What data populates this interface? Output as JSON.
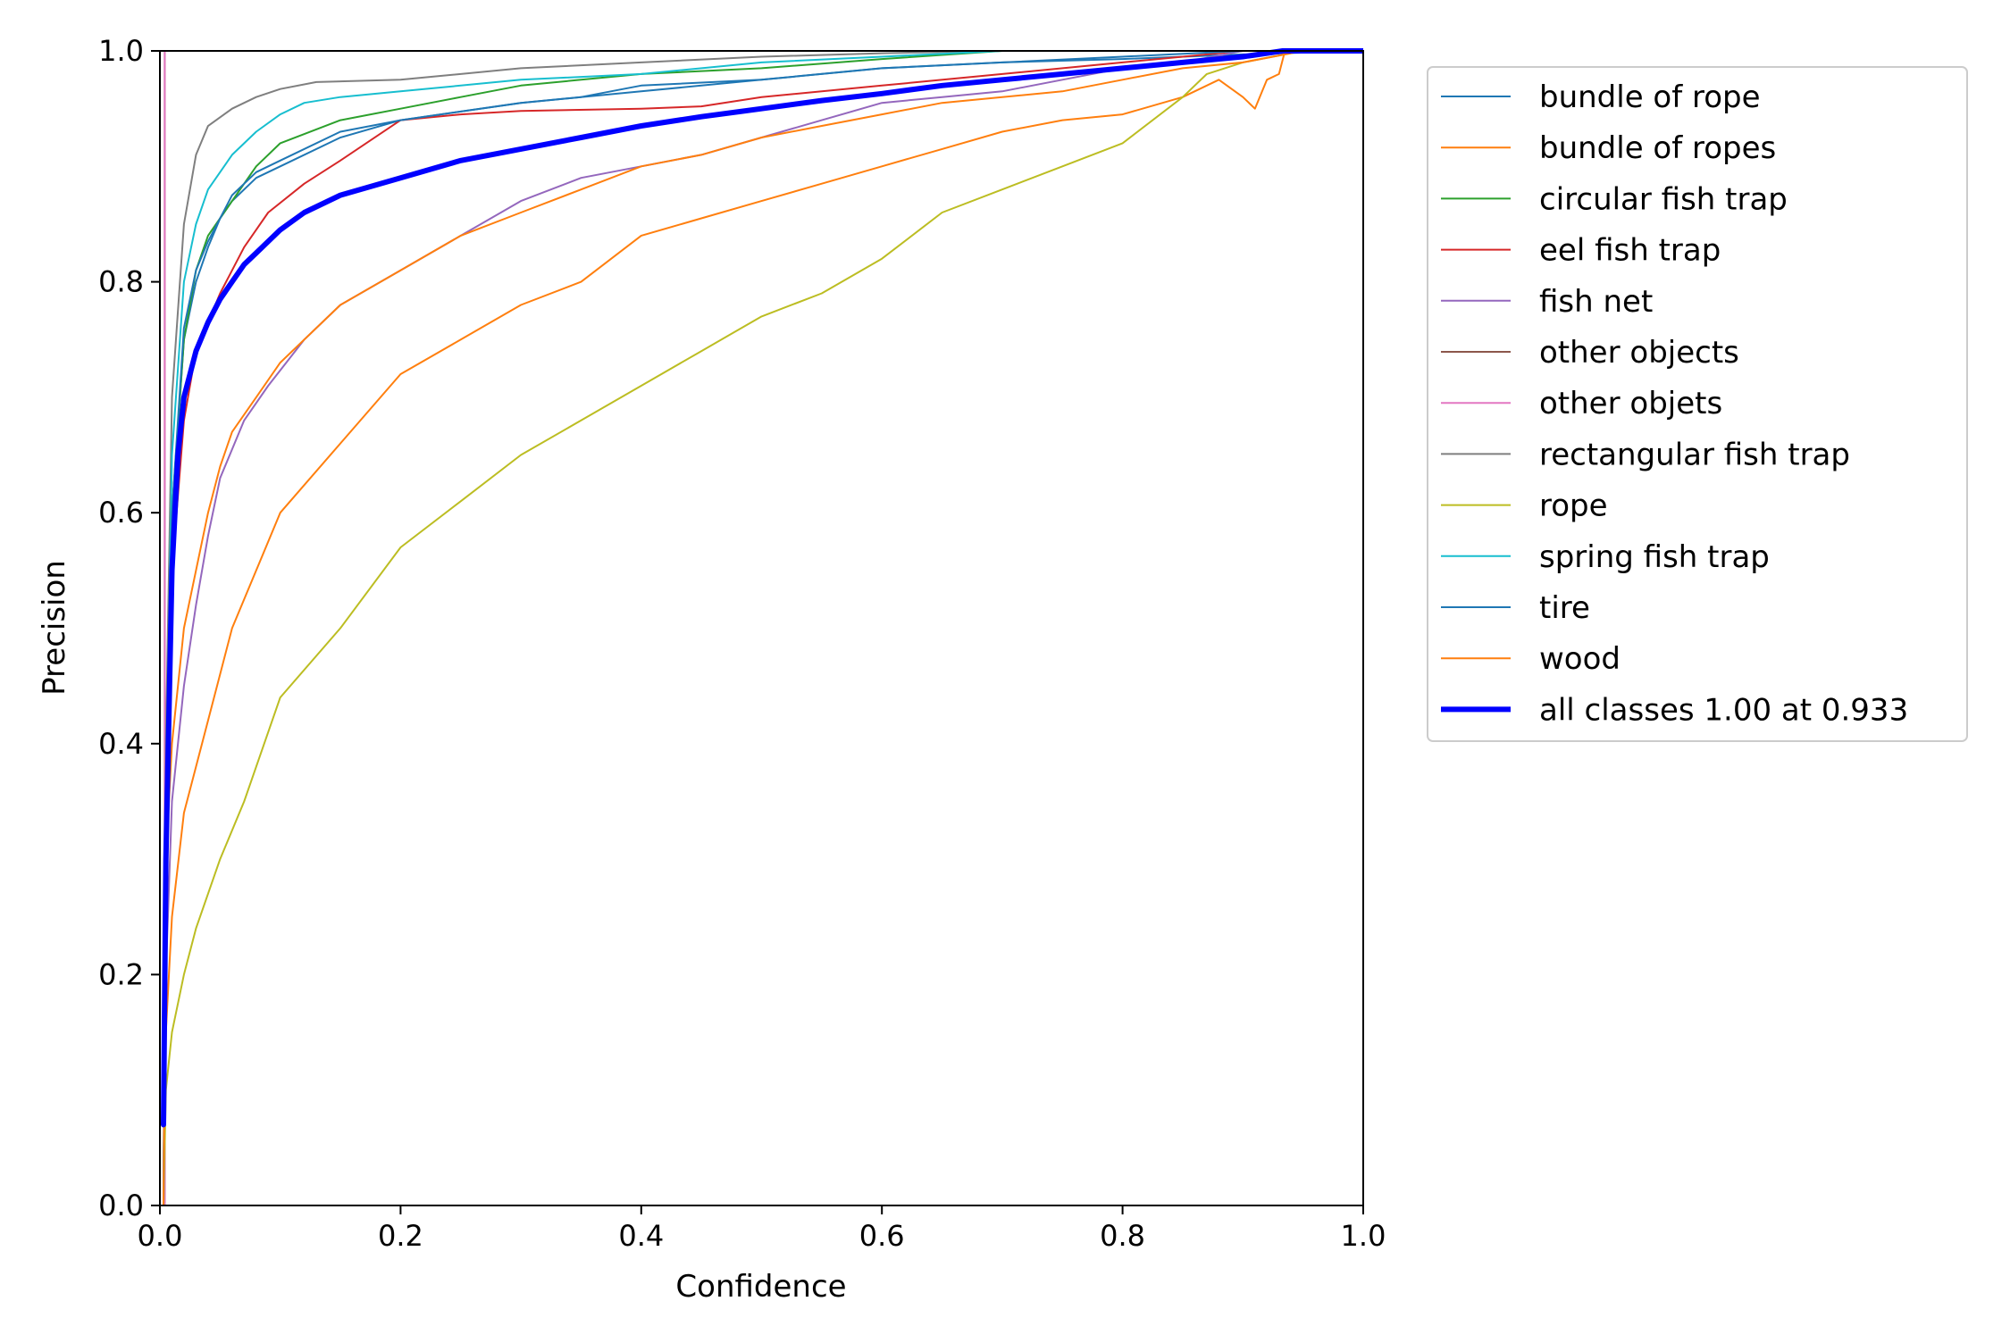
{
  "chart_data": {
    "type": "line",
    "title": "",
    "xlabel": "Confidence",
    "ylabel": "Precision",
    "xlim": [
      0,
      1
    ],
    "ylim": [
      0,
      1
    ],
    "xticks": [
      "0.0",
      "0.2",
      "0.4",
      "0.6",
      "0.8",
      "1.0"
    ],
    "yticks": [
      "0.0",
      "0.2",
      "0.4",
      "0.6",
      "0.8",
      "1.0"
    ],
    "grid": false,
    "legend_position": "outside-right-top",
    "series": [
      {
        "name": "bundle of rope",
        "color": "#1f77b4",
        "width": 2,
        "points": [
          [
            0.003,
            0.0
          ],
          [
            0.005,
            0.35
          ],
          [
            0.01,
            0.6
          ],
          [
            0.02,
            0.75
          ],
          [
            0.03,
            0.8
          ],
          [
            0.04,
            0.83
          ],
          [
            0.05,
            0.855
          ],
          [
            0.06,
            0.87
          ],
          [
            0.08,
            0.89
          ],
          [
            0.1,
            0.9
          ],
          [
            0.15,
            0.925
          ],
          [
            0.2,
            0.94
          ],
          [
            0.3,
            0.955
          ],
          [
            0.35,
            0.96
          ],
          [
            0.4,
            0.97
          ],
          [
            0.5,
            0.975
          ],
          [
            0.6,
            0.985
          ],
          [
            0.7,
            0.99
          ],
          [
            0.8,
            0.993
          ],
          [
            0.9,
            0.997
          ],
          [
            1.0,
            1.0
          ]
        ]
      },
      {
        "name": "bundle of ropes",
        "color": "#ff7f0e",
        "width": 2,
        "points": [
          [
            0.003,
            0.0
          ],
          [
            0.005,
            0.15
          ],
          [
            0.01,
            0.25
          ],
          [
            0.02,
            0.34
          ],
          [
            0.04,
            0.42
          ],
          [
            0.06,
            0.5
          ],
          [
            0.08,
            0.55
          ],
          [
            0.1,
            0.6
          ],
          [
            0.15,
            0.66
          ],
          [
            0.2,
            0.72
          ],
          [
            0.25,
            0.75
          ],
          [
            0.3,
            0.78
          ],
          [
            0.35,
            0.8
          ],
          [
            0.4,
            0.84
          ],
          [
            0.45,
            0.855
          ],
          [
            0.5,
            0.87
          ],
          [
            0.55,
            0.885
          ],
          [
            0.6,
            0.9
          ],
          [
            0.65,
            0.915
          ],
          [
            0.7,
            0.93
          ],
          [
            0.75,
            0.94
          ],
          [
            0.8,
            0.945
          ],
          [
            0.85,
            0.96
          ],
          [
            0.88,
            0.975
          ],
          [
            0.9,
            0.96
          ],
          [
            0.91,
            0.95
          ],
          [
            0.92,
            0.975
          ],
          [
            0.93,
            0.98
          ],
          [
            0.935,
            1.0
          ],
          [
            1.0,
            1.0
          ]
        ]
      },
      {
        "name": "circular fish trap",
        "color": "#2ca02c",
        "width": 2,
        "points": [
          [
            0.003,
            0.0
          ],
          [
            0.005,
            0.3
          ],
          [
            0.01,
            0.6
          ],
          [
            0.02,
            0.75
          ],
          [
            0.03,
            0.81
          ],
          [
            0.04,
            0.84
          ],
          [
            0.06,
            0.87
          ],
          [
            0.08,
            0.9
          ],
          [
            0.1,
            0.92
          ],
          [
            0.15,
            0.94
          ],
          [
            0.2,
            0.95
          ],
          [
            0.25,
            0.96
          ],
          [
            0.3,
            0.97
          ],
          [
            0.35,
            0.975
          ],
          [
            0.4,
            0.98
          ],
          [
            0.5,
            0.985
          ],
          [
            0.6,
            0.993
          ],
          [
            0.7,
            1.0
          ],
          [
            1.0,
            1.0
          ]
        ]
      },
      {
        "name": "eel fish trap",
        "color": "#d62728",
        "width": 2,
        "points": [
          [
            0.003,
            0.0
          ],
          [
            0.005,
            0.3
          ],
          [
            0.01,
            0.55
          ],
          [
            0.02,
            0.68
          ],
          [
            0.03,
            0.74
          ],
          [
            0.05,
            0.79
          ],
          [
            0.07,
            0.83
          ],
          [
            0.09,
            0.86
          ],
          [
            0.12,
            0.885
          ],
          [
            0.15,
            0.905
          ],
          [
            0.2,
            0.94
          ],
          [
            0.25,
            0.945
          ],
          [
            0.3,
            0.948
          ],
          [
            0.4,
            0.95
          ],
          [
            0.45,
            0.952
          ],
          [
            0.5,
            0.96
          ],
          [
            0.6,
            0.97
          ],
          [
            0.7,
            0.98
          ],
          [
            0.8,
            0.99
          ],
          [
            0.85,
            0.995
          ],
          [
            0.9,
            1.0
          ],
          [
            1.0,
            1.0
          ]
        ]
      },
      {
        "name": "fish net",
        "color": "#9467bd",
        "width": 2,
        "points": [
          [
            0.003,
            0.0
          ],
          [
            0.005,
            0.2
          ],
          [
            0.01,
            0.35
          ],
          [
            0.02,
            0.45
          ],
          [
            0.03,
            0.52
          ],
          [
            0.04,
            0.58
          ],
          [
            0.05,
            0.63
          ],
          [
            0.07,
            0.68
          ],
          [
            0.09,
            0.71
          ],
          [
            0.12,
            0.75
          ],
          [
            0.15,
            0.78
          ],
          [
            0.2,
            0.81
          ],
          [
            0.25,
            0.84
          ],
          [
            0.3,
            0.87
          ],
          [
            0.35,
            0.89
          ],
          [
            0.4,
            0.9
          ],
          [
            0.45,
            0.91
          ],
          [
            0.5,
            0.925
          ],
          [
            0.55,
            0.94
          ],
          [
            0.6,
            0.955
          ],
          [
            0.65,
            0.96
          ],
          [
            0.7,
            0.965
          ],
          [
            0.75,
            0.975
          ],
          [
            0.8,
            0.985
          ],
          [
            0.85,
            0.99
          ],
          [
            0.9,
            1.0
          ],
          [
            1.0,
            1.0
          ]
        ]
      },
      {
        "name": "other objects",
        "color": "#8c564b",
        "width": 2,
        "points": [
          [
            0.004,
            0.0
          ],
          [
            0.004,
            1.0
          ]
        ]
      },
      {
        "name": "other objets",
        "color": "#e377c2",
        "width": 2,
        "points": [
          [
            0.004,
            0.0
          ],
          [
            0.004,
            1.0
          ]
        ]
      },
      {
        "name": "rectangular fish trap",
        "color": "#7f7f7f",
        "width": 2,
        "points": [
          [
            0.003,
            0.0
          ],
          [
            0.005,
            0.4
          ],
          [
            0.01,
            0.7
          ],
          [
            0.02,
            0.85
          ],
          [
            0.03,
            0.91
          ],
          [
            0.04,
            0.935
          ],
          [
            0.06,
            0.95
          ],
          [
            0.08,
            0.96
          ],
          [
            0.1,
            0.967
          ],
          [
            0.13,
            0.973
          ],
          [
            0.2,
            0.975
          ],
          [
            0.3,
            0.985
          ],
          [
            0.4,
            0.99
          ],
          [
            0.5,
            0.995
          ],
          [
            0.6,
            0.998
          ],
          [
            0.7,
            1.0
          ],
          [
            1.0,
            1.0
          ]
        ]
      },
      {
        "name": "rope",
        "color": "#bcbd22",
        "width": 2,
        "points": [
          [
            0.003,
            0.0
          ],
          [
            0.005,
            0.1
          ],
          [
            0.01,
            0.15
          ],
          [
            0.02,
            0.2
          ],
          [
            0.03,
            0.24
          ],
          [
            0.05,
            0.3
          ],
          [
            0.07,
            0.35
          ],
          [
            0.1,
            0.44
          ],
          [
            0.15,
            0.5
          ],
          [
            0.2,
            0.57
          ],
          [
            0.25,
            0.61
          ],
          [
            0.3,
            0.65
          ],
          [
            0.35,
            0.68
          ],
          [
            0.4,
            0.71
          ],
          [
            0.45,
            0.74
          ],
          [
            0.5,
            0.77
          ],
          [
            0.55,
            0.79
          ],
          [
            0.6,
            0.82
          ],
          [
            0.65,
            0.86
          ],
          [
            0.7,
            0.88
          ],
          [
            0.75,
            0.9
          ],
          [
            0.8,
            0.92
          ],
          [
            0.85,
            0.96
          ],
          [
            0.87,
            0.98
          ],
          [
            0.9,
            0.99
          ],
          [
            0.95,
            1.0
          ],
          [
            1.0,
            1.0
          ]
        ]
      },
      {
        "name": "spring fish trap",
        "color": "#17becf",
        "width": 2,
        "points": [
          [
            0.003,
            0.0
          ],
          [
            0.005,
            0.35
          ],
          [
            0.01,
            0.65
          ],
          [
            0.02,
            0.8
          ],
          [
            0.03,
            0.85
          ],
          [
            0.04,
            0.88
          ],
          [
            0.06,
            0.91
          ],
          [
            0.08,
            0.93
          ],
          [
            0.1,
            0.945
          ],
          [
            0.12,
            0.955
          ],
          [
            0.15,
            0.96
          ],
          [
            0.2,
            0.965
          ],
          [
            0.3,
            0.975
          ],
          [
            0.4,
            0.98
          ],
          [
            0.5,
            0.99
          ],
          [
            0.6,
            0.995
          ],
          [
            0.7,
            1.0
          ],
          [
            1.0,
            1.0
          ]
        ]
      },
      {
        "name": "tire",
        "color": "#1f77b4",
        "width": 2,
        "points": [
          [
            0.003,
            0.0
          ],
          [
            0.005,
            0.35
          ],
          [
            0.01,
            0.6
          ],
          [
            0.02,
            0.76
          ],
          [
            0.03,
            0.81
          ],
          [
            0.04,
            0.835
          ],
          [
            0.05,
            0.855
          ],
          [
            0.06,
            0.875
          ],
          [
            0.08,
            0.895
          ],
          [
            0.1,
            0.905
          ],
          [
            0.15,
            0.93
          ],
          [
            0.2,
            0.94
          ],
          [
            0.3,
            0.955
          ],
          [
            0.4,
            0.965
          ],
          [
            0.5,
            0.975
          ],
          [
            0.6,
            0.985
          ],
          [
            0.7,
            0.99
          ],
          [
            0.8,
            0.995
          ],
          [
            0.9,
            1.0
          ],
          [
            1.0,
            1.0
          ]
        ]
      },
      {
        "name": "wood",
        "color": "#ff7f0e",
        "width": 2,
        "points": [
          [
            0.003,
            0.0
          ],
          [
            0.005,
            0.3
          ],
          [
            0.01,
            0.4
          ],
          [
            0.02,
            0.5
          ],
          [
            0.03,
            0.55
          ],
          [
            0.04,
            0.6
          ],
          [
            0.05,
            0.64
          ],
          [
            0.06,
            0.67
          ],
          [
            0.08,
            0.7
          ],
          [
            0.1,
            0.73
          ],
          [
            0.15,
            0.78
          ],
          [
            0.2,
            0.81
          ],
          [
            0.25,
            0.84
          ],
          [
            0.3,
            0.86
          ],
          [
            0.35,
            0.88
          ],
          [
            0.4,
            0.9
          ],
          [
            0.45,
            0.91
          ],
          [
            0.5,
            0.925
          ],
          [
            0.55,
            0.935
          ],
          [
            0.6,
            0.945
          ],
          [
            0.65,
            0.955
          ],
          [
            0.7,
            0.96
          ],
          [
            0.75,
            0.965
          ],
          [
            0.8,
            0.975
          ],
          [
            0.85,
            0.985
          ],
          [
            0.9,
            0.99
          ],
          [
            0.95,
            1.0
          ],
          [
            1.0,
            1.0
          ]
        ]
      },
      {
        "name": "all classes 1.00 at 0.933",
        "color": "#0000ff",
        "width": 6,
        "points": [
          [
            0.003,
            0.07
          ],
          [
            0.005,
            0.3
          ],
          [
            0.01,
            0.55
          ],
          [
            0.015,
            0.65
          ],
          [
            0.02,
            0.7
          ],
          [
            0.03,
            0.74
          ],
          [
            0.04,
            0.765
          ],
          [
            0.05,
            0.785
          ],
          [
            0.06,
            0.8
          ],
          [
            0.07,
            0.815
          ],
          [
            0.08,
            0.825
          ],
          [
            0.1,
            0.845
          ],
          [
            0.12,
            0.86
          ],
          [
            0.15,
            0.875
          ],
          [
            0.2,
            0.89
          ],
          [
            0.25,
            0.905
          ],
          [
            0.3,
            0.915
          ],
          [
            0.35,
            0.925
          ],
          [
            0.4,
            0.935
          ],
          [
            0.45,
            0.943
          ],
          [
            0.5,
            0.95
          ],
          [
            0.55,
            0.957
          ],
          [
            0.6,
            0.963
          ],
          [
            0.65,
            0.97
          ],
          [
            0.7,
            0.975
          ],
          [
            0.75,
            0.98
          ],
          [
            0.8,
            0.985
          ],
          [
            0.85,
            0.99
          ],
          [
            0.9,
            0.995
          ],
          [
            0.933,
            1.0
          ],
          [
            1.0,
            1.0
          ]
        ]
      }
    ]
  }
}
